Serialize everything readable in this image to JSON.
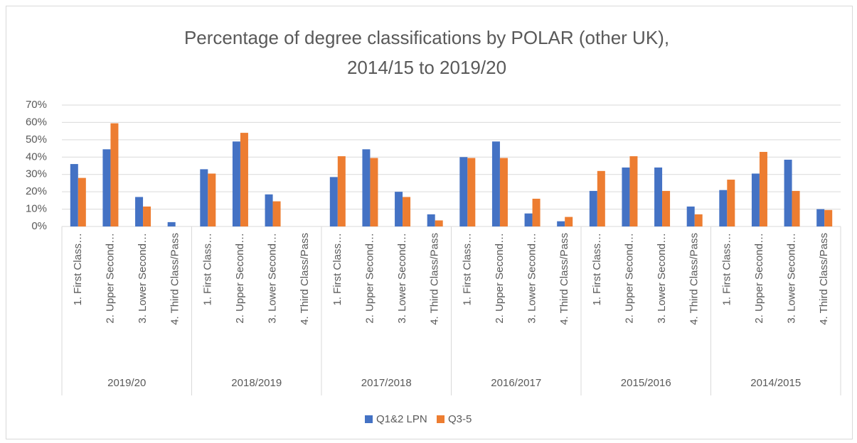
{
  "chart_data": {
    "type": "bar",
    "title": [
      "Percentage of degree classifications by POLAR (other UK),",
      "2014/15 to 2019/20"
    ],
    "categories": [
      "1. First Class…",
      "2. Upper Second…",
      "3. Lower Second…",
      "4. Third Class/Pass",
      "1. First Class…",
      "2. Upper Second…",
      "3. Lower Second…",
      "4. Third Class/Pass",
      "1. First Class…",
      "2. Upper Second…",
      "3. Lower Second…",
      "4. Third Class/Pass",
      "1. First Class…",
      "2. Upper Second…",
      "3. Lower Second…",
      "4. Third Class/Pass",
      "1. First Class…",
      "2. Upper Second…",
      "3. Lower Second…",
      "4. Third Class/Pass",
      "1. First Class…",
      "2. Upper Second…",
      "3. Lower Second…",
      "4. Third Class/Pass"
    ],
    "category_groups": [
      "2019/20",
      "2018/2019",
      "2017/2018",
      "2016/2017",
      "2015/2016",
      "2014/2015"
    ],
    "series": [
      {
        "name": "Q1&2 LPN",
        "color": "#4472c4",
        "values": [
          36,
          44.5,
          17,
          2.5,
          33,
          49,
          18.5,
          0,
          28.5,
          44.5,
          20,
          7,
          40,
          49,
          7.5,
          3,
          20.5,
          34,
          34,
          11.5,
          21,
          30.5,
          38.5,
          10
        ]
      },
      {
        "name": "Q3-5",
        "color": "#ed7d31",
        "values": [
          28,
          59.5,
          11.5,
          0,
          30.5,
          54,
          14.5,
          0,
          40.5,
          39.5,
          17,
          3.5,
          39.5,
          39.5,
          16,
          5.5,
          32,
          40.5,
          20.5,
          7,
          27,
          43,
          20.5,
          9.5
        ]
      }
    ],
    "ylim": [
      0,
      70
    ],
    "yticks": [
      {
        "value": 0,
        "label": "0%"
      },
      {
        "value": 10,
        "label": "10%"
      },
      {
        "value": 20,
        "label": "20%"
      },
      {
        "value": 30,
        "label": "30%"
      },
      {
        "value": 40,
        "label": "40%"
      },
      {
        "value": 50,
        "label": "50%"
      },
      {
        "value": 60,
        "label": "60%"
      },
      {
        "value": 70,
        "label": "70%"
      }
    ],
    "grid": true,
    "legend": "bottom"
  }
}
